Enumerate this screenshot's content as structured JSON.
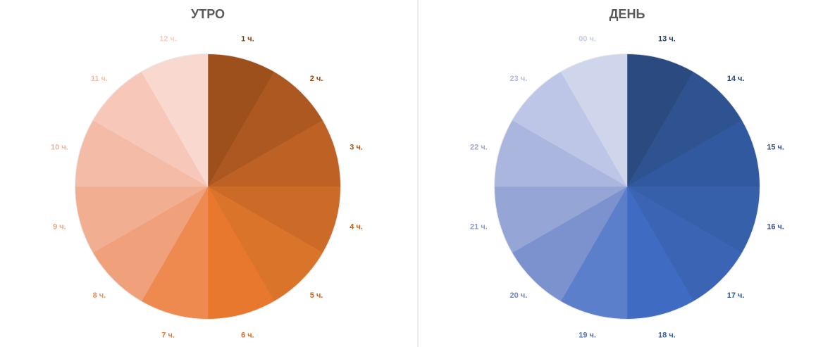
{
  "chart_data": [
    {
      "type": "pie",
      "title": "УТРО",
      "categories": [
        "1 ч.",
        "2 ч.",
        "3 ч.",
        "4 ч.",
        "5 ч.",
        "6 ч.",
        "7 ч.",
        "8 ч.",
        "9 ч.",
        "10 ч.",
        "11 ч.",
        "12 ч."
      ],
      "values": [
        1,
        1,
        1,
        1,
        1,
        1,
        1,
        1,
        1,
        1,
        1,
        1
      ],
      "colors": [
        "#9e501c",
        "#ad5821",
        "#be6124",
        "#cc6a28",
        "#da742b",
        "#e7782e",
        "#ee8a4f",
        "#f0a07a",
        "#f2ae91",
        "#f4bca7",
        "#f7c8b9",
        "#f8d8cf"
      ],
      "label_colors": [
        "#843c0c",
        "#984610",
        "#ad5218",
        "#bf5e1d",
        "#cc6523",
        "#d46a28",
        "#e07a40",
        "#e48f68",
        "#eea384",
        "#f1b49c",
        "#f5c0ae",
        "#f8ccbe"
      ]
    },
    {
      "type": "pie",
      "title": "ДЕНЬ",
      "categories": [
        "13 ч.",
        "14 ч.",
        "15 ч.",
        "16 ч.",
        "17 ч.",
        "18 ч.",
        "19 ч.",
        "20 ч.",
        "21 ч.",
        "22 ч.",
        "23 ч.",
        "00 ч."
      ],
      "values": [
        1,
        1,
        1,
        1,
        1,
        1,
        1,
        1,
        1,
        1,
        1,
        1
      ],
      "colors": [
        "#2b4b80",
        "#2f5291",
        "#3159a0",
        "#3760aa",
        "#3b65b4",
        "#3f6cc2",
        "#5b7fcb",
        "#7c92cf",
        "#95a6d6",
        "#aab6dd",
        "#bdc6e6",
        "#cfd5ea"
      ],
      "label_colors": [
        "#203864",
        "#24407a",
        "#2b4b8a",
        "#2f5296",
        "#2f5597",
        "#3a5ea8",
        "#5470b2",
        "#6f84b9",
        "#8a9ac5",
        "#9ea9cf",
        "#b3bcda",
        "#c5cce2"
      ]
    }
  ]
}
